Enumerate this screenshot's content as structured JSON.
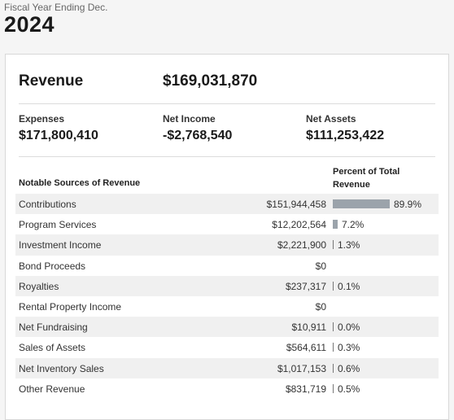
{
  "fiscal": {
    "label": "Fiscal Year Ending Dec.",
    "year": "2024"
  },
  "revenue": {
    "label": "Revenue",
    "value": "$169,031,870"
  },
  "metrics": {
    "expenses": {
      "label": "Expenses",
      "value": "$171,800,410"
    },
    "net_income": {
      "label": "Net Income",
      "value": "-$2,768,540"
    },
    "net_assets": {
      "label": "Net Assets",
      "value": "$111,253,422"
    }
  },
  "table": {
    "header_left": "Notable Sources of Revenue",
    "header_right": "Percent of Total Revenue",
    "rows": [
      {
        "name": "Contributions",
        "amount": "$151,944,458",
        "percent": "89.9%",
        "percent_value": 89.9
      },
      {
        "name": "Program Services",
        "amount": "$12,202,564",
        "percent": "7.2%",
        "percent_value": 7.2
      },
      {
        "name": "Investment Income",
        "amount": "$2,221,900",
        "percent": "1.3%",
        "percent_value": 1.3
      },
      {
        "name": "Bond Proceeds",
        "amount": "$0",
        "percent": "",
        "percent_value": 0
      },
      {
        "name": "Royalties",
        "amount": "$237,317",
        "percent": "0.1%",
        "percent_value": 0.1
      },
      {
        "name": "Rental Property Income",
        "amount": "$0",
        "percent": "",
        "percent_value": 0
      },
      {
        "name": "Net Fundraising",
        "amount": "$10,911",
        "percent": "0.0%",
        "percent_value": 0.0
      },
      {
        "name": "Sales of Assets",
        "amount": "$564,611",
        "percent": "0.3%",
        "percent_value": 0.3
      },
      {
        "name": "Net Inventory Sales",
        "amount": "$1,017,153",
        "percent": "0.6%",
        "percent_value": 0.6
      },
      {
        "name": "Other Revenue",
        "amount": "$831,719",
        "percent": "0.5%",
        "percent_value": 0.5
      }
    ]
  },
  "colors": {
    "bar": "#9ba3ab",
    "row_shade": "#f0f0f0"
  }
}
